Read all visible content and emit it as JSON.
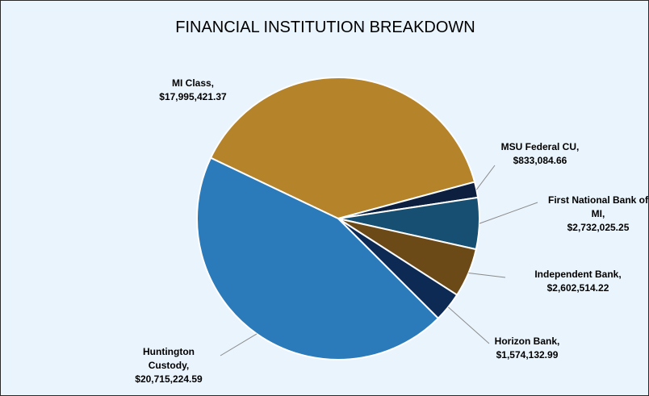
{
  "chart_data": {
    "type": "pie",
    "title": "FINANCIAL INSTITUTION BREAKDOWN",
    "categories": [
      "MI Class,",
      "MSU Federal CU,",
      "First National Bank of MI,",
      "Independent Bank,",
      "Horizon Bank,",
      "Huntington Custody,"
    ],
    "values": [
      17995421.37,
      833084.66,
      2732025.25,
      2602514.22,
      1574132.99,
      20715224.59
    ],
    "value_labels": [
      "$17,995,421.37",
      "$833,084.66",
      "$2,732,025.25",
      "$2,602,514.22",
      "$1,574,132.99",
      "$20,715,224.59"
    ],
    "colors": [
      "#b5832a",
      "#0c1f3f",
      "#174f72",
      "#6b4a18",
      "#0d2a55",
      "#2b7bba"
    ]
  }
}
